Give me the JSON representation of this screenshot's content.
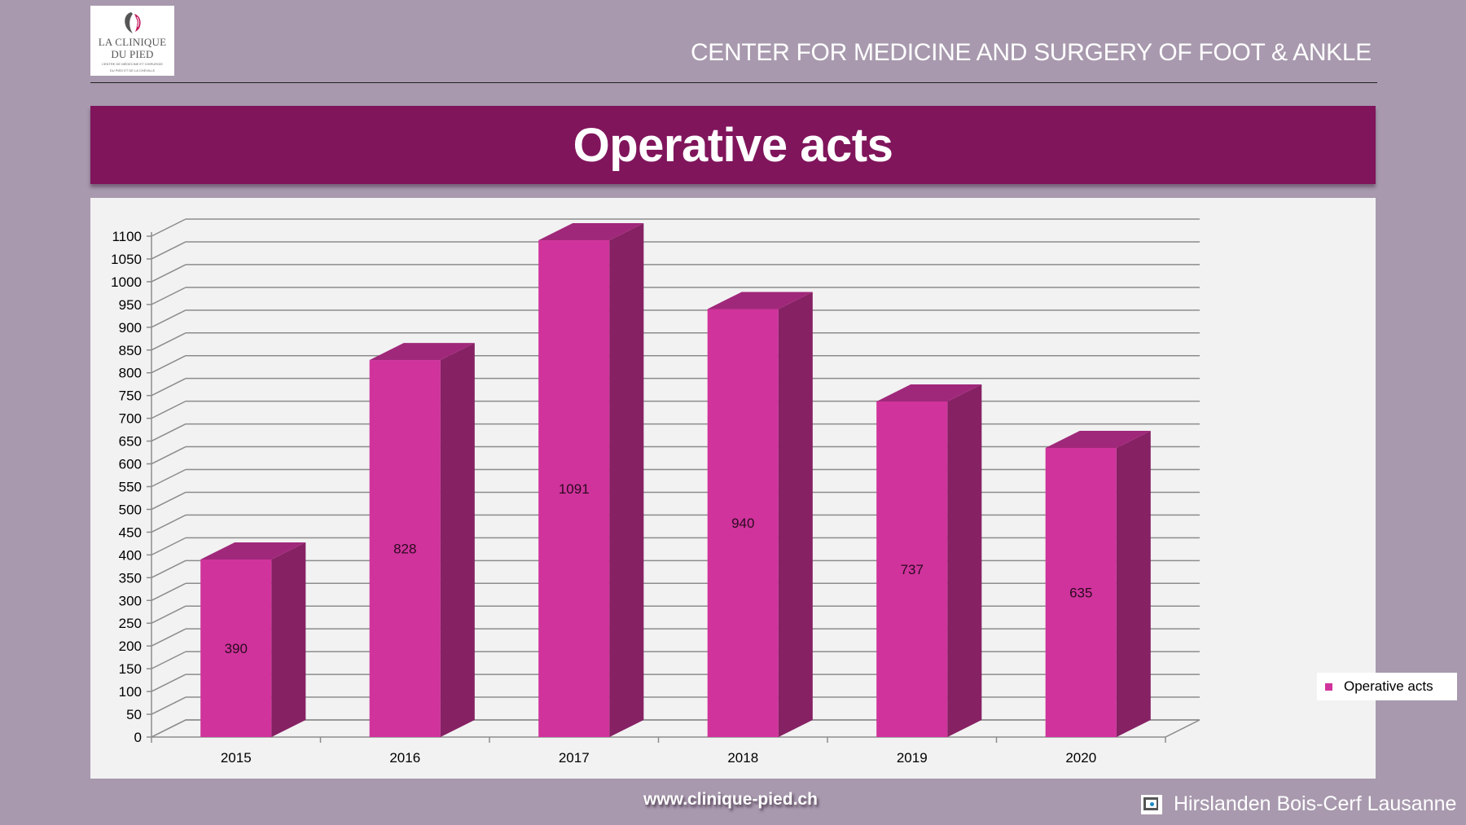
{
  "logo": {
    "name_line1": "LA CLINIQUE",
    "name_line2": "DU PIED",
    "subtitle_line1": "CENTRE DE MÉDECINE ET CHIRURGIE",
    "subtitle_line2": "DU PIED ET DE LA CHEVILLE",
    "icon": "foot-logo-icon"
  },
  "header": {
    "title": "CENTER FOR MEDICINE AND SURGERY OF FOOT & ANKLE"
  },
  "banner": {
    "title": "Operative acts"
  },
  "colors": {
    "background": "#a899ae",
    "banner": "#80155c",
    "bar_front": "#d0339c",
    "bar_side": "#862164",
    "bar_top": "#a0287a",
    "panel": "#f2f2f2"
  },
  "chart_data": {
    "type": "bar",
    "style": "3d-column",
    "title": "",
    "xlabel": "",
    "ylabel": "",
    "categories": [
      "2015",
      "2016",
      "2017",
      "2018",
      "2019",
      "2020"
    ],
    "series": [
      {
        "name": "Operative acts",
        "values": [
          390,
          828,
          1091,
          940,
          737,
          635
        ]
      }
    ],
    "data_labels": [
      "390",
      "828",
      "1091",
      "940",
      "737",
      "635"
    ],
    "ylim": [
      0,
      1100
    ],
    "y_ticks": [
      0,
      50,
      100,
      150,
      200,
      250,
      300,
      350,
      400,
      450,
      500,
      550,
      600,
      650,
      700,
      750,
      800,
      850,
      900,
      950,
      1000,
      1050,
      1100
    ],
    "grid": true,
    "legend": {
      "position": "right",
      "entries": [
        "Operative acts"
      ]
    }
  },
  "footer": {
    "url": "www.clinique-pied.ch",
    "brand": "Hirslanden Bois-Cerf Lausanne",
    "brand_icon": "hirslanden-logo-icon"
  }
}
